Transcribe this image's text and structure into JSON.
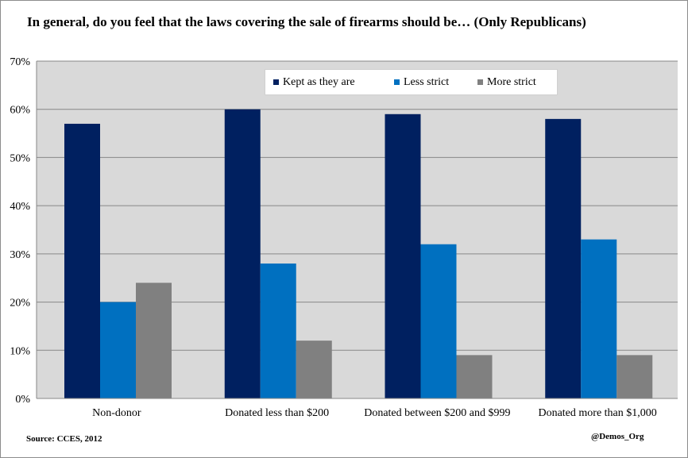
{
  "title": "In general, do you feel that the laws covering the sale of firearms should be… (Only Republicans)",
  "source": "Source: CCES, 2012",
  "credit": "@Demos_Org",
  "colors": {
    "kept": "#002060",
    "less": "#0070c0",
    "more": "#808080",
    "plot_bg": "#d9d9d9",
    "grid": "#888888"
  },
  "chart_data": {
    "type": "bar",
    "title": "In general, do you feel that the laws covering the sale of firearms should be… (Only Republicans)",
    "categories": [
      "Non-donor",
      "Donated less than $200",
      "Donated between $200 and $999",
      "Donated more than $1,000"
    ],
    "series": [
      {
        "name": "Kept as they are",
        "values": [
          57,
          60,
          59,
          58
        ]
      },
      {
        "name": "Less strict",
        "values": [
          20,
          28,
          32,
          33
        ]
      },
      {
        "name": "More strict",
        "values": [
          24,
          12,
          9,
          9
        ]
      }
    ],
    "yticks": [
      "0%",
      "10%",
      "20%",
      "30%",
      "40%",
      "50%",
      "60%",
      "70%"
    ],
    "ylim": [
      0,
      70
    ],
    "grid": true,
    "legend_position": "top-right"
  }
}
